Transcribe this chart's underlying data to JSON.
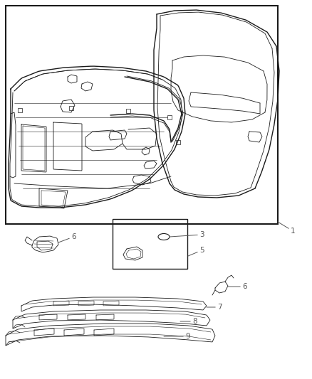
{
  "bg_color": "#ffffff",
  "line_color": "#1a1a1a",
  "label_color": "#555555",
  "figsize": [
    4.38,
    5.33
  ],
  "dpi": 100
}
